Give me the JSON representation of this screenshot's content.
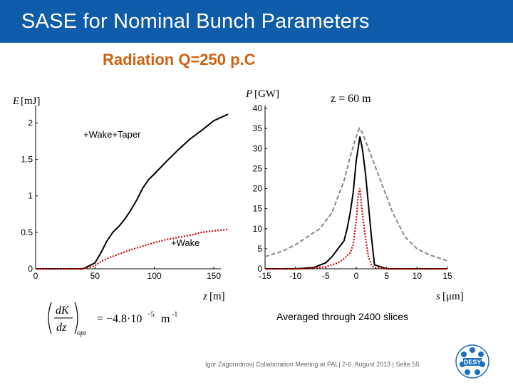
{
  "slide": {
    "title": "SASE for Nominal Bunch Parameters",
    "subtitle": "Radiation Q=250 p.C",
    "averaged_note": "Averaged through 2400 slices",
    "footer": "Igor Zagorodnov| Collaboration Meeting at PAL| 2-6. August 2013 | Seite 55",
    "logo_text": "DESY",
    "formula": {
      "lhs_numerator": "dK",
      "lhs_denominator": "dz",
      "subscript": "opt",
      "rhs": "= −4.8·10",
      "exponent": "−5",
      "unit": "m",
      "unit_exponent": "-1"
    }
  },
  "colors": {
    "title_bar": "#0f5cab",
    "subtitle": "#d06010",
    "taper_line": "#000000",
    "wake_line": "#cc0000",
    "envelope_line": "#888888"
  },
  "chart_data": [
    {
      "type": "line",
      "ylabel_symbol": "E",
      "ylabel_unit": "[mJ]",
      "xlabel_symbol": "z",
      "xlabel_unit": "[m]",
      "xlim": [
        0,
        150
      ],
      "ylim": [
        0,
        2.2
      ],
      "x_ticks": [
        "0",
        "50",
        "100",
        "150"
      ],
      "y_ticks": [
        "0",
        "0.5",
        "1",
        "1.5",
        "2"
      ],
      "annotations": [
        "+Wake+Taper",
        "+Wake"
      ],
      "series": [
        {
          "name": "+Wake+Taper",
          "style": "solid",
          "x": [
            0,
            40,
            50,
            55,
            60,
            65,
            70,
            75,
            80,
            85,
            90,
            95,
            100,
            110,
            120,
            130,
            140,
            150,
            162
          ],
          "y": [
            0,
            0,
            0.08,
            0.22,
            0.38,
            0.5,
            0.58,
            0.68,
            0.8,
            0.94,
            1.1,
            1.22,
            1.3,
            1.47,
            1.63,
            1.78,
            1.9,
            2.03,
            2.12
          ]
        },
        {
          "name": "+Wake",
          "style": "dotted",
          "x": [
            0,
            40,
            50,
            55,
            60,
            70,
            80,
            90,
            100,
            110,
            120,
            130,
            140,
            150,
            162
          ],
          "y": [
            0,
            0,
            0.04,
            0.1,
            0.14,
            0.2,
            0.26,
            0.31,
            0.36,
            0.4,
            0.43,
            0.46,
            0.5,
            0.52,
            0.54
          ]
        }
      ]
    },
    {
      "type": "line",
      "ylabel_symbol": "P",
      "ylabel_unit": "[GW]",
      "xlabel_symbol": "s",
      "xlabel_unit": "[μm]",
      "annotation": "z = 60 m",
      "xlim": [
        -15,
        15
      ],
      "ylim": [
        0,
        40
      ],
      "x_ticks": [
        "-15",
        "-10",
        "-5",
        "0",
        "5",
        "10",
        "15"
      ],
      "y_ticks": [
        "0",
        "5",
        "10",
        "15",
        "20",
        "25",
        "30",
        "35",
        "40"
      ],
      "series": [
        {
          "style": "dashed",
          "x": [
            -15,
            -12,
            -10,
            -8,
            -6,
            -4,
            -2,
            -1,
            0,
            0.5,
            1,
            2,
            4,
            6,
            8,
            10,
            12,
            15
          ],
          "y": [
            3,
            4.5,
            6,
            8,
            10,
            14,
            22,
            28,
            33,
            35,
            34,
            30,
            22,
            14,
            8,
            5,
            3.5,
            2
          ]
        },
        {
          "style": "solid",
          "x": [
            -15,
            -10,
            -7,
            -5,
            -4,
            -3,
            -2,
            -1.5,
            -1,
            -0.5,
            0,
            0.3,
            0.6,
            1,
            1.5,
            2,
            2.5,
            3,
            5,
            10,
            15
          ],
          "y": [
            0,
            0,
            0.3,
            1.5,
            3,
            5,
            7,
            10,
            14,
            19,
            27,
            30,
            33,
            30,
            24,
            16,
            8,
            1,
            0,
            0,
            0
          ]
        },
        {
          "style": "dotted",
          "x": [
            -15,
            -8,
            -5,
            -3,
            -2,
            -1,
            -0.5,
            0,
            0.3,
            0.6,
            1,
            1.5,
            2,
            2.5,
            3,
            5,
            15
          ],
          "y": [
            0,
            0,
            0.5,
            1.5,
            2.5,
            4,
            6,
            12,
            18,
            20,
            14,
            8,
            3,
            1,
            0.3,
            0,
            0
          ]
        }
      ]
    }
  ]
}
